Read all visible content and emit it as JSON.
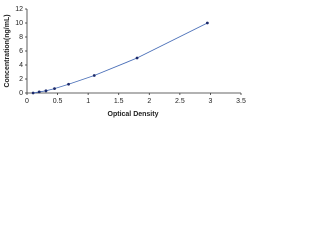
{
  "chart_data": {
    "type": "scatter",
    "x_label": "Optical Density",
    "y_label": "Concentration(ng/mL)",
    "series": [
      {
        "color": "#1c2a6b",
        "line_color": "#4a6fb8",
        "x": [
          0.1,
          0.2,
          0.31,
          0.45,
          0.68,
          1.1,
          1.8,
          2.95
        ],
        "values": [
          0,
          0.156,
          0.312,
          0.625,
          1.25,
          2.5,
          5,
          10
        ]
      }
    ],
    "xlim": [
      0,
      3.5
    ],
    "xticks": [
      0,
      0.5,
      1,
      1.5,
      2,
      2.5,
      3,
      3.5
    ],
    "ylim": [
      0,
      12
    ],
    "yticks": [
      0,
      2,
      4,
      6,
      8,
      10,
      12
    ]
  }
}
